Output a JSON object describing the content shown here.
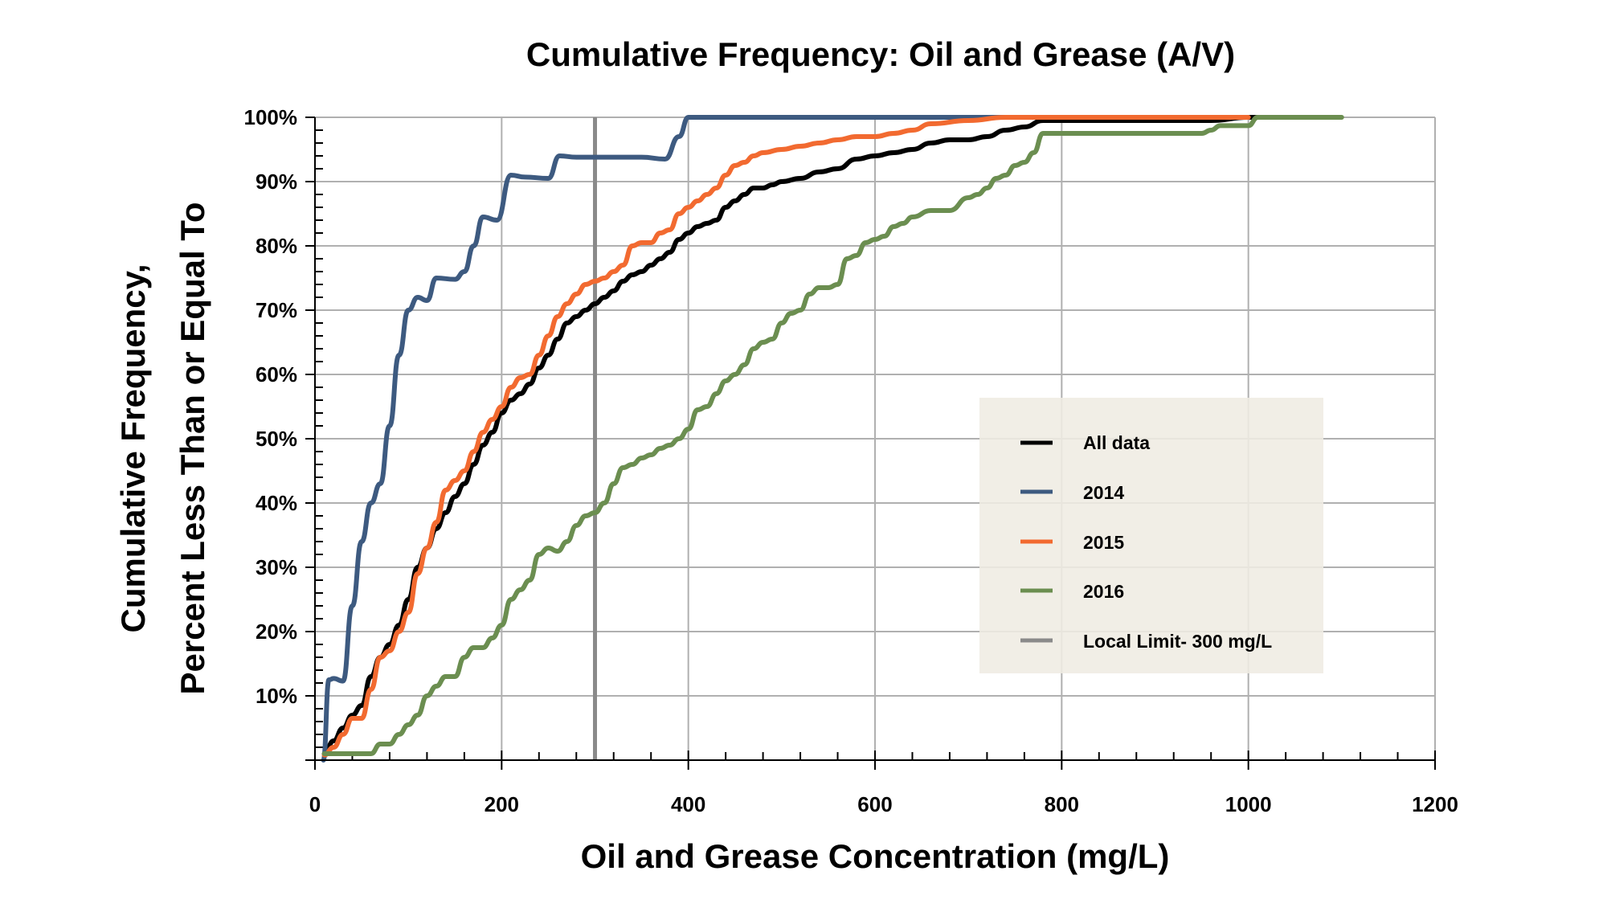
{
  "chart_data": {
    "type": "line",
    "title": "Cumulative Frequency: Oil and Grease (A/V)",
    "xlabel": "Oil and Grease Concentration (mg/L)",
    "ylabel_lines": [
      "Cumulative Frequency,",
      "Percent Less Than or Equal To"
    ],
    "xlim": [
      0,
      1200
    ],
    "ylim": [
      0,
      100
    ],
    "x_ticks": [
      0,
      200,
      400,
      600,
      800,
      1000,
      1200
    ],
    "x_tick_labels": [
      "0",
      "200",
      "400",
      "600",
      "800",
      "1000",
      "1200"
    ],
    "y_ticks": [
      10,
      20,
      30,
      40,
      50,
      60,
      70,
      80,
      90,
      100
    ],
    "y_tick_labels": [
      "10%",
      "20%",
      "30%",
      "40%",
      "50%",
      "60%",
      "70%",
      "80%",
      "90%",
      "100%"
    ],
    "grid": true,
    "legend_position": "center-right",
    "series": [
      {
        "name": "All data",
        "color": "#000000",
        "points": [
          [
            10,
            1
          ],
          [
            20,
            3
          ],
          [
            30,
            5
          ],
          [
            40,
            7
          ],
          [
            50,
            8.5
          ],
          [
            60,
            13
          ],
          [
            70,
            16
          ],
          [
            80,
            18
          ],
          [
            90,
            21
          ],
          [
            100,
            25
          ],
          [
            110,
            30
          ],
          [
            120,
            33
          ],
          [
            130,
            36
          ],
          [
            140,
            38.5
          ],
          [
            150,
            41
          ],
          [
            160,
            43
          ],
          [
            170,
            46
          ],
          [
            180,
            49
          ],
          [
            190,
            51
          ],
          [
            200,
            54
          ],
          [
            210,
            56
          ],
          [
            220,
            57
          ],
          [
            230,
            58.5
          ],
          [
            240,
            61
          ],
          [
            250,
            63
          ],
          [
            260,
            65.5
          ],
          [
            270,
            68
          ],
          [
            280,
            69
          ],
          [
            290,
            70
          ],
          [
            300,
            71
          ],
          [
            310,
            72
          ],
          [
            320,
            73
          ],
          [
            330,
            74.5
          ],
          [
            340,
            75.5
          ],
          [
            350,
            76
          ],
          [
            360,
            77
          ],
          [
            370,
            78
          ],
          [
            380,
            79
          ],
          [
            390,
            81
          ],
          [
            400,
            82
          ],
          [
            410,
            83
          ],
          [
            420,
            83.5
          ],
          [
            430,
            84
          ],
          [
            440,
            86
          ],
          [
            450,
            87
          ],
          [
            460,
            88
          ],
          [
            470,
            89
          ],
          [
            480,
            89
          ],
          [
            490,
            89.5
          ],
          [
            500,
            90
          ],
          [
            520,
            90.5
          ],
          [
            540,
            91.5
          ],
          [
            560,
            92
          ],
          [
            580,
            93.5
          ],
          [
            600,
            94
          ],
          [
            620,
            94.5
          ],
          [
            640,
            95
          ],
          [
            660,
            96
          ],
          [
            680,
            96.5
          ],
          [
            700,
            96.5
          ],
          [
            720,
            97
          ],
          [
            740,
            98
          ],
          [
            760,
            98.5
          ],
          [
            780,
            99.5
          ],
          [
            800,
            99.5
          ],
          [
            900,
            99.5
          ],
          [
            960,
            99.5
          ],
          [
            1000,
            100
          ],
          [
            1010,
            100
          ]
        ]
      },
      {
        "name": "2014",
        "color": "#3d5a80",
        "points": [
          [
            9,
            0
          ],
          [
            15,
            12.5
          ],
          [
            20,
            12.7
          ],
          [
            30,
            12.3
          ],
          [
            40,
            24
          ],
          [
            50,
            34
          ],
          [
            60,
            40
          ],
          [
            70,
            43
          ],
          [
            80,
            52
          ],
          [
            90,
            63
          ],
          [
            100,
            70
          ],
          [
            110,
            72
          ],
          [
            120,
            71.5
          ],
          [
            130,
            75
          ],
          [
            150,
            74.8
          ],
          [
            160,
            76
          ],
          [
            170,
            80
          ],
          [
            180,
            84.5
          ],
          [
            195,
            84
          ],
          [
            210,
            91
          ],
          [
            225,
            90.7
          ],
          [
            250,
            90.5
          ],
          [
            262,
            94
          ],
          [
            280,
            93.8
          ],
          [
            300,
            93.8
          ],
          [
            350,
            93.8
          ],
          [
            375,
            93.5
          ],
          [
            390,
            97
          ],
          [
            400,
            100
          ],
          [
            700,
            100
          ],
          [
            800,
            100
          ]
        ]
      },
      {
        "name": "2015",
        "color": "#f26a30",
        "points": [
          [
            10,
            0.8
          ],
          [
            20,
            2
          ],
          [
            30,
            4
          ],
          [
            40,
            6.5
          ],
          [
            50,
            6.5
          ],
          [
            60,
            11
          ],
          [
            70,
            16
          ],
          [
            80,
            17
          ],
          [
            90,
            20
          ],
          [
            100,
            23
          ],
          [
            110,
            29
          ],
          [
            120,
            33
          ],
          [
            130,
            37
          ],
          [
            140,
            42
          ],
          [
            150,
            43.5
          ],
          [
            160,
            45
          ],
          [
            170,
            48
          ],
          [
            180,
            51
          ],
          [
            190,
            53
          ],
          [
            200,
            55
          ],
          [
            210,
            58
          ],
          [
            220,
            59.5
          ],
          [
            230,
            60
          ],
          [
            240,
            63
          ],
          [
            250,
            66
          ],
          [
            260,
            69
          ],
          [
            270,
            71
          ],
          [
            280,
            72.5
          ],
          [
            290,
            74
          ],
          [
            300,
            74.5
          ],
          [
            310,
            75
          ],
          [
            320,
            76
          ],
          [
            330,
            77
          ],
          [
            340,
            80
          ],
          [
            350,
            80.5
          ],
          [
            360,
            80.5
          ],
          [
            370,
            82
          ],
          [
            380,
            82.5
          ],
          [
            390,
            85
          ],
          [
            400,
            86
          ],
          [
            410,
            87
          ],
          [
            420,
            88
          ],
          [
            430,
            89
          ],
          [
            440,
            91
          ],
          [
            450,
            92.5
          ],
          [
            460,
            93
          ],
          [
            470,
            94
          ],
          [
            480,
            94.5
          ],
          [
            500,
            95
          ],
          [
            520,
            95.5
          ],
          [
            540,
            96
          ],
          [
            560,
            96.5
          ],
          [
            580,
            97
          ],
          [
            600,
            97
          ],
          [
            620,
            97.5
          ],
          [
            640,
            98
          ],
          [
            660,
            99
          ],
          [
            700,
            99.5
          ],
          [
            740,
            100
          ],
          [
            800,
            100
          ],
          [
            1000,
            100
          ]
        ]
      },
      {
        "name": "2016",
        "color": "#6b8e50",
        "points": [
          [
            10,
            1
          ],
          [
            40,
            1
          ],
          [
            60,
            1
          ],
          [
            70,
            2.5
          ],
          [
            80,
            2.5
          ],
          [
            90,
            4
          ],
          [
            100,
            5.5
          ],
          [
            110,
            7
          ],
          [
            120,
            10
          ],
          [
            130,
            11.5
          ],
          [
            140,
            13
          ],
          [
            150,
            13
          ],
          [
            160,
            16
          ],
          [
            170,
            17.5
          ],
          [
            180,
            17.5
          ],
          [
            190,
            19
          ],
          [
            200,
            21
          ],
          [
            210,
            25
          ],
          [
            220,
            26.5
          ],
          [
            230,
            28
          ],
          [
            240,
            32
          ],
          [
            250,
            33
          ],
          [
            260,
            32.5
          ],
          [
            270,
            34
          ],
          [
            280,
            36.5
          ],
          [
            290,
            38
          ],
          [
            300,
            38.5
          ],
          [
            310,
            40
          ],
          [
            320,
            43
          ],
          [
            330,
            45.5
          ],
          [
            340,
            46
          ],
          [
            350,
            47
          ],
          [
            360,
            47.5
          ],
          [
            370,
            48.5
          ],
          [
            380,
            49
          ],
          [
            390,
            50
          ],
          [
            400,
            51.5
          ],
          [
            410,
            54.5
          ],
          [
            420,
            55
          ],
          [
            430,
            57
          ],
          [
            440,
            59
          ],
          [
            450,
            60
          ],
          [
            460,
            61.5
          ],
          [
            470,
            64
          ],
          [
            480,
            65
          ],
          [
            490,
            65.5
          ],
          [
            500,
            68
          ],
          [
            510,
            69.5
          ],
          [
            520,
            70
          ],
          [
            530,
            72.5
          ],
          [
            540,
            73.5
          ],
          [
            550,
            73.5
          ],
          [
            560,
            74
          ],
          [
            570,
            78
          ],
          [
            580,
            78.5
          ],
          [
            590,
            80.5
          ],
          [
            600,
            81
          ],
          [
            610,
            81.5
          ],
          [
            620,
            83
          ],
          [
            630,
            83.5
          ],
          [
            640,
            84.5
          ],
          [
            660,
            85.5
          ],
          [
            680,
            85.5
          ],
          [
            700,
            87.5
          ],
          [
            710,
            88
          ],
          [
            720,
            89
          ],
          [
            730,
            90.5
          ],
          [
            740,
            91
          ],
          [
            750,
            92.5
          ],
          [
            760,
            93
          ],
          [
            770,
            94.5
          ],
          [
            780,
            97.5
          ],
          [
            800,
            97.5
          ],
          [
            900,
            97.5
          ],
          [
            950,
            97.5
          ],
          [
            960,
            98
          ],
          [
            970,
            98.7
          ],
          [
            1000,
            98.7
          ],
          [
            1010,
            100
          ],
          [
            1100,
            100
          ]
        ]
      }
    ],
    "reference_line": {
      "name": "Local Limit- 300 mg/L",
      "x": 300,
      "color": "#8a8a8a"
    },
    "legend_entries": [
      "All data",
      "2014",
      "2015",
      "2016",
      "Local Limit- 300 mg/L"
    ]
  },
  "colors": {
    "grid": "#b0b0b0",
    "legend_bg": "#efece3"
  }
}
